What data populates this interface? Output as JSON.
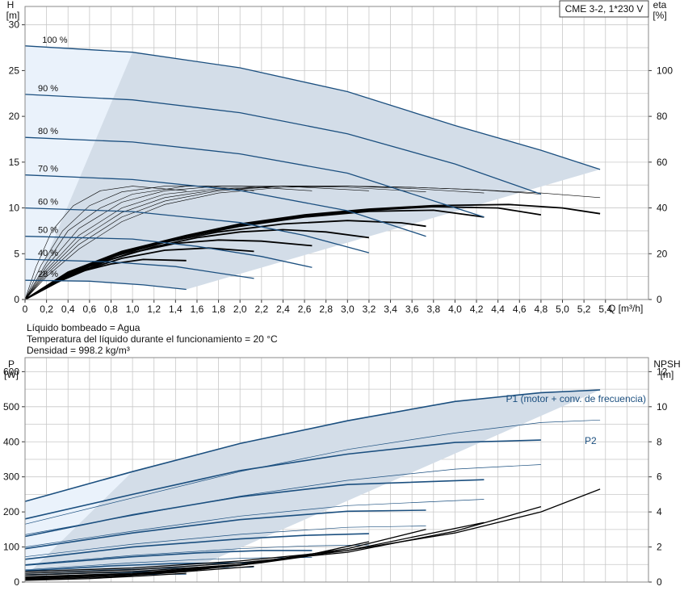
{
  "model_label": "CME 3-2, 1*230 V",
  "info_lines": [
    "Líquido bombeado = Agua",
    "Temperatura del líquido durante el funcionamiento = 20 °C",
    "Densidad = 998.2 kg/m³"
  ],
  "chart_data": [
    {
      "type": "line",
      "id": "head",
      "left_axis": {
        "label": "H",
        "unit": "[m]",
        "ylim": [
          0,
          32
        ],
        "ticks": [
          0,
          5,
          10,
          15,
          20,
          25,
          30
        ]
      },
      "right_axis": {
        "label": "eta",
        "unit": "[%]",
        "ylim": [
          0,
          128
        ],
        "ticks": [
          0,
          20,
          40,
          60,
          80,
          100
        ]
      },
      "x_axis": {
        "label": "Q [m³/h]",
        "xlim": [
          0,
          5.8
        ],
        "ticks": [
          "0",
          "0,2",
          "0,4",
          "0,6",
          "0,8",
          "1,0",
          "1,2",
          "1,4",
          "1,6",
          "1,8",
          "2,0",
          "2,2",
          "2,4",
          "2,6",
          "2,8",
          "3,0",
          "3,2",
          "3,4",
          "3,6",
          "3,8",
          "4,0",
          "4,2",
          "4,4",
          "4,6",
          "4,8",
          "5,0",
          "5,2",
          "5,4"
        ]
      },
      "grid": true,
      "head_curves": [
        {
          "label": "100 %",
          "x": [
            0,
            1.0,
            2.0,
            3.0,
            4.0,
            4.8,
            5.35
          ],
          "y": [
            27.7,
            27.0,
            25.3,
            22.7,
            19.0,
            16.3,
            14.2
          ]
        },
        {
          "label": "90 %",
          "x": [
            0,
            1.0,
            2.0,
            3.0,
            4.0,
            4.8
          ],
          "y": [
            22.4,
            21.8,
            20.4,
            18.1,
            14.8,
            11.5
          ]
        },
        {
          "label": "80 %",
          "x": [
            0,
            1.0,
            2.0,
            3.0,
            4.27
          ],
          "y": [
            17.7,
            17.2,
            15.9,
            13.8,
            9.0
          ]
        },
        {
          "label": "70 %",
          "x": [
            0,
            1.0,
            2.0,
            3.0,
            3.73
          ],
          "y": [
            13.6,
            13.1,
            11.9,
            9.7,
            6.9
          ]
        },
        {
          "label": "60 %",
          "x": [
            0,
            1.0,
            2.0,
            2.6,
            3.2
          ],
          "y": [
            10.0,
            9.6,
            8.4,
            7.0,
            5.1
          ]
        },
        {
          "label": "50 %",
          "x": [
            0,
            1.0,
            1.6,
            2.2,
            2.67
          ],
          "y": [
            6.9,
            6.6,
            5.8,
            4.7,
            3.5
          ]
        },
        {
          "label": "40 %",
          "x": [
            0,
            0.8,
            1.4,
            2.13
          ],
          "y": [
            4.4,
            4.1,
            3.6,
            2.3
          ]
        },
        {
          "label": "28 %",
          "x": [
            0,
            0.6,
            1.1,
            1.5
          ],
          "y": [
            2.1,
            2.0,
            1.6,
            1.1
          ]
        }
      ],
      "eta_curves": [
        {
          "x": [
            0,
            0.4,
            0.9,
            1.5,
            2.0,
            2.6,
            3.2,
            3.8,
            4.5,
            5.0,
            5.35
          ],
          "y": [
            0,
            12,
            21,
            28,
            33,
            37,
            39.5,
            41,
            41.5,
            40,
            37.5
          ]
        },
        {
          "x": [
            0,
            0.4,
            0.9,
            1.5,
            2.0,
            2.6,
            3.2,
            3.8,
            4.4,
            4.8
          ],
          "y": [
            0,
            11.5,
            20.5,
            27.5,
            32.5,
            36.5,
            39,
            40.5,
            40,
            37
          ]
        },
        {
          "x": [
            0,
            0.4,
            0.9,
            1.4,
            2.0,
            2.6,
            3.2,
            3.8,
            4.27
          ],
          "y": [
            0,
            11,
            20,
            26.5,
            32,
            36,
            38.5,
            39,
            36
          ]
        },
        {
          "x": [
            0,
            0.4,
            0.8,
            1.3,
            1.8,
            2.4,
            3.0,
            3.5,
            3.73
          ],
          "y": [
            0,
            10.5,
            18.5,
            25,
            29.5,
            33,
            34.5,
            33.5,
            32
          ]
        },
        {
          "x": [
            0,
            0.4,
            0.8,
            1.2,
            1.6,
            2.0,
            2.4,
            2.8,
            3.2
          ],
          "y": [
            0,
            10,
            17.5,
            23,
            27,
            29.5,
            30.5,
            29.5,
            27
          ]
        },
        {
          "x": [
            0,
            0.3,
            0.6,
            1.0,
            1.4,
            1.8,
            2.2,
            2.67
          ],
          "y": [
            0,
            8,
            14.5,
            20.5,
            24.5,
            26,
            25.5,
            23.5
          ]
        },
        {
          "x": [
            0,
            0.3,
            0.6,
            0.9,
            1.3,
            1.7,
            2.13
          ],
          "y": [
            0,
            7.5,
            13.5,
            18,
            21.5,
            22.5,
            21
          ]
        },
        {
          "x": [
            0,
            0.2,
            0.5,
            0.8,
            1.1,
            1.5
          ],
          "y": [
            0,
            5.5,
            12,
            15.5,
            17.5,
            17
          ]
        }
      ],
      "eta_partload_curves": [
        {
          "x": [
            0,
            0.2,
            0.5,
            0.9,
            1.3,
            1.8,
            2.4,
            3.0,
            3.6,
            4.2,
            4.8,
            5.35
          ],
          "y": [
            0,
            10,
            22,
            34,
            41.5,
            46.5,
            49,
            49.5,
            49,
            48,
            46.5,
            44.5
          ]
        },
        {
          "x": [
            0,
            0.2,
            0.5,
            0.9,
            1.3,
            1.8,
            2.4,
            3.0,
            3.6,
            4.2,
            4.8
          ],
          "y": [
            0,
            11,
            24,
            36,
            43,
            47.5,
            49.5,
            49.5,
            49,
            48,
            46
          ]
        },
        {
          "x": [
            0,
            0.2,
            0.5,
            0.9,
            1.3,
            1.8,
            2.4,
            3.0,
            3.6,
            4.27
          ],
          "y": [
            0,
            12,
            26,
            38,
            44.5,
            48,
            49.5,
            49.5,
            48.5,
            46.5
          ]
        },
        {
          "x": [
            0,
            0.2,
            0.5,
            0.9,
            1.3,
            1.8,
            2.4,
            3.0,
            3.73
          ],
          "y": [
            0,
            13,
            28,
            40,
            46,
            48.5,
            49.5,
            49,
            47
          ]
        },
        {
          "x": [
            0,
            0.2,
            0.5,
            0.9,
            1.3,
            1.8,
            2.4,
            3.2
          ],
          "y": [
            0,
            14.5,
            31,
            42.5,
            47.5,
            49.5,
            49.5,
            47.5
          ]
        },
        {
          "x": [
            0,
            0.2,
            0.4,
            0.7,
            1.0,
            1.5,
            2.0,
            2.67
          ],
          "y": [
            0,
            16,
            30,
            40,
            46,
            49.5,
            49.5,
            47.5
          ]
        },
        {
          "x": [
            0,
            0.15,
            0.35,
            0.6,
            0.9,
            1.3,
            1.7,
            2.13
          ],
          "y": [
            0,
            15,
            30,
            41,
            47,
            49.5,
            49.5,
            47.5
          ]
        },
        {
          "x": [
            0,
            0.1,
            0.25,
            0.45,
            0.7,
            1.0,
            1.5
          ],
          "y": [
            0,
            14,
            30,
            41,
            47.5,
            49.5,
            47.5
          ]
        }
      ]
    },
    {
      "type": "line",
      "id": "power",
      "left_axis": {
        "label": "P",
        "unit": "[W]",
        "ylim": [
          0,
          640
        ],
        "ticks": [
          0,
          100,
          200,
          300,
          400,
          500,
          600
        ]
      },
      "right_axis": {
        "label": "NPSH",
        "unit": "[m]",
        "ylim": [
          0,
          12.8
        ],
        "ticks": [
          0,
          2,
          4,
          6,
          8,
          10,
          12
        ]
      },
      "xlim": [
        0,
        5.8
      ],
      "grid": true,
      "series_labels": {
        "p1": "P1 (motor + conv. de frecuencia)",
        "p2": "P2"
      },
      "p1_curves": [
        {
          "x": [
            0,
            1.0,
            2.0,
            3.0,
            4.0,
            4.8,
            5.35
          ],
          "y": [
            230,
            315,
            395,
            460,
            515,
            540,
            548
          ]
        },
        {
          "x": [
            0,
            1.0,
            2.0,
            3.0,
            4.0,
            4.8
          ],
          "y": [
            180,
            250,
            318,
            365,
            398,
            405
          ]
        },
        {
          "x": [
            0,
            1.0,
            2.0,
            3.0,
            4.27
          ],
          "y": [
            130,
            192,
            243,
            278,
            292
          ]
        },
        {
          "x": [
            0,
            1.0,
            2.0,
            3.0,
            3.73
          ],
          "y": [
            95,
            140,
            178,
            202,
            205
          ]
        },
        {
          "x": [
            0,
            1.0,
            2.0,
            2.6,
            3.2
          ],
          "y": [
            65,
            100,
            123,
            133,
            138
          ]
        },
        {
          "x": [
            0,
            1.0,
            1.6,
            2.2,
            2.67
          ],
          "y": [
            48,
            72,
            83,
            90,
            90
          ]
        },
        {
          "x": [
            0,
            0.8,
            1.4,
            2.13
          ],
          "y": [
            32,
            46,
            53,
            55
          ]
        },
        {
          "x": [
            0,
            0.6,
            1.1,
            1.5
          ],
          "y": [
            20,
            26,
            29,
            30
          ]
        }
      ],
      "p2_curves": [
        {
          "x": [
            0,
            1.0,
            2.0,
            3.0,
            4.0,
            4.8,
            5.35
          ],
          "y": [
            165,
            240,
            315,
            378,
            425,
            455,
            462
          ]
        },
        {
          "x": [
            0,
            1.0,
            2.0,
            3.0,
            4.0,
            4.8
          ],
          "y": [
            135,
            190,
            245,
            290,
            322,
            335
          ]
        },
        {
          "x": [
            0,
            1.0,
            2.0,
            3.0,
            4.27
          ],
          "y": [
            100,
            145,
            188,
            218,
            236
          ]
        },
        {
          "x": [
            0,
            1.0,
            2.0,
            3.0,
            3.73
          ],
          "y": [
            72,
            108,
            136,
            156,
            160
          ]
        },
        {
          "x": [
            0,
            1.0,
            2.0,
            2.6,
            3.2
          ],
          "y": [
            50,
            76,
            95,
            103,
            106
          ]
        },
        {
          "x": [
            0,
            1.0,
            1.6,
            2.2,
            2.67
          ],
          "y": [
            35,
            55,
            64,
            69,
            70
          ]
        },
        {
          "x": [
            0,
            0.8,
            1.4,
            2.13
          ],
          "y": [
            25,
            35,
            40,
            42
          ]
        },
        {
          "x": [
            0,
            0.6,
            1.1,
            1.5
          ],
          "y": [
            14,
            19,
            21,
            22
          ]
        }
      ],
      "npsh_curves": [
        {
          "x": [
            0,
            1.0,
            2.0,
            3.0,
            4.0,
            4.8,
            5.35
          ],
          "y": [
            0.6,
            0.8,
            1.2,
            1.8,
            2.8,
            4.0,
            5.3
          ]
        },
        {
          "x": [
            0,
            1.0,
            2.0,
            3.0,
            4.0,
            4.8
          ],
          "y": [
            0.5,
            0.7,
            1.1,
            1.7,
            2.9,
            4.3
          ]
        },
        {
          "x": [
            0,
            1.0,
            2.0,
            3.0,
            4.27
          ],
          "y": [
            0.4,
            0.6,
            1.0,
            1.8,
            3.4
          ]
        },
        {
          "x": [
            0,
            1.0,
            2.0,
            3.0,
            3.73
          ],
          "y": [
            0.3,
            0.5,
            1.0,
            1.9,
            3.0
          ]
        },
        {
          "x": [
            0,
            1.0,
            2.0,
            2.6,
            3.2
          ],
          "y": [
            0.25,
            0.45,
            0.95,
            1.5,
            2.3
          ]
        },
        {
          "x": [
            0,
            1.0,
            1.6,
            2.2,
            2.67
          ],
          "y": [
            0.2,
            0.4,
            0.7,
            1.1,
            1.5
          ]
        },
        {
          "x": [
            0,
            0.8,
            1.4,
            2.13
          ],
          "y": [
            0.15,
            0.3,
            0.55,
            0.9
          ]
        },
        {
          "x": [
            0,
            0.6,
            1.1,
            1.5
          ],
          "y": [
            0.1,
            0.2,
            0.35,
            0.5
          ]
        }
      ]
    }
  ],
  "colors": {
    "curve": "#1b4f7f",
    "eta": "#000000",
    "area": "#d3dde8",
    "area_light": "#eaf2fb",
    "grid": "#c8c8c8",
    "frame": "#8a8a8a"
  }
}
